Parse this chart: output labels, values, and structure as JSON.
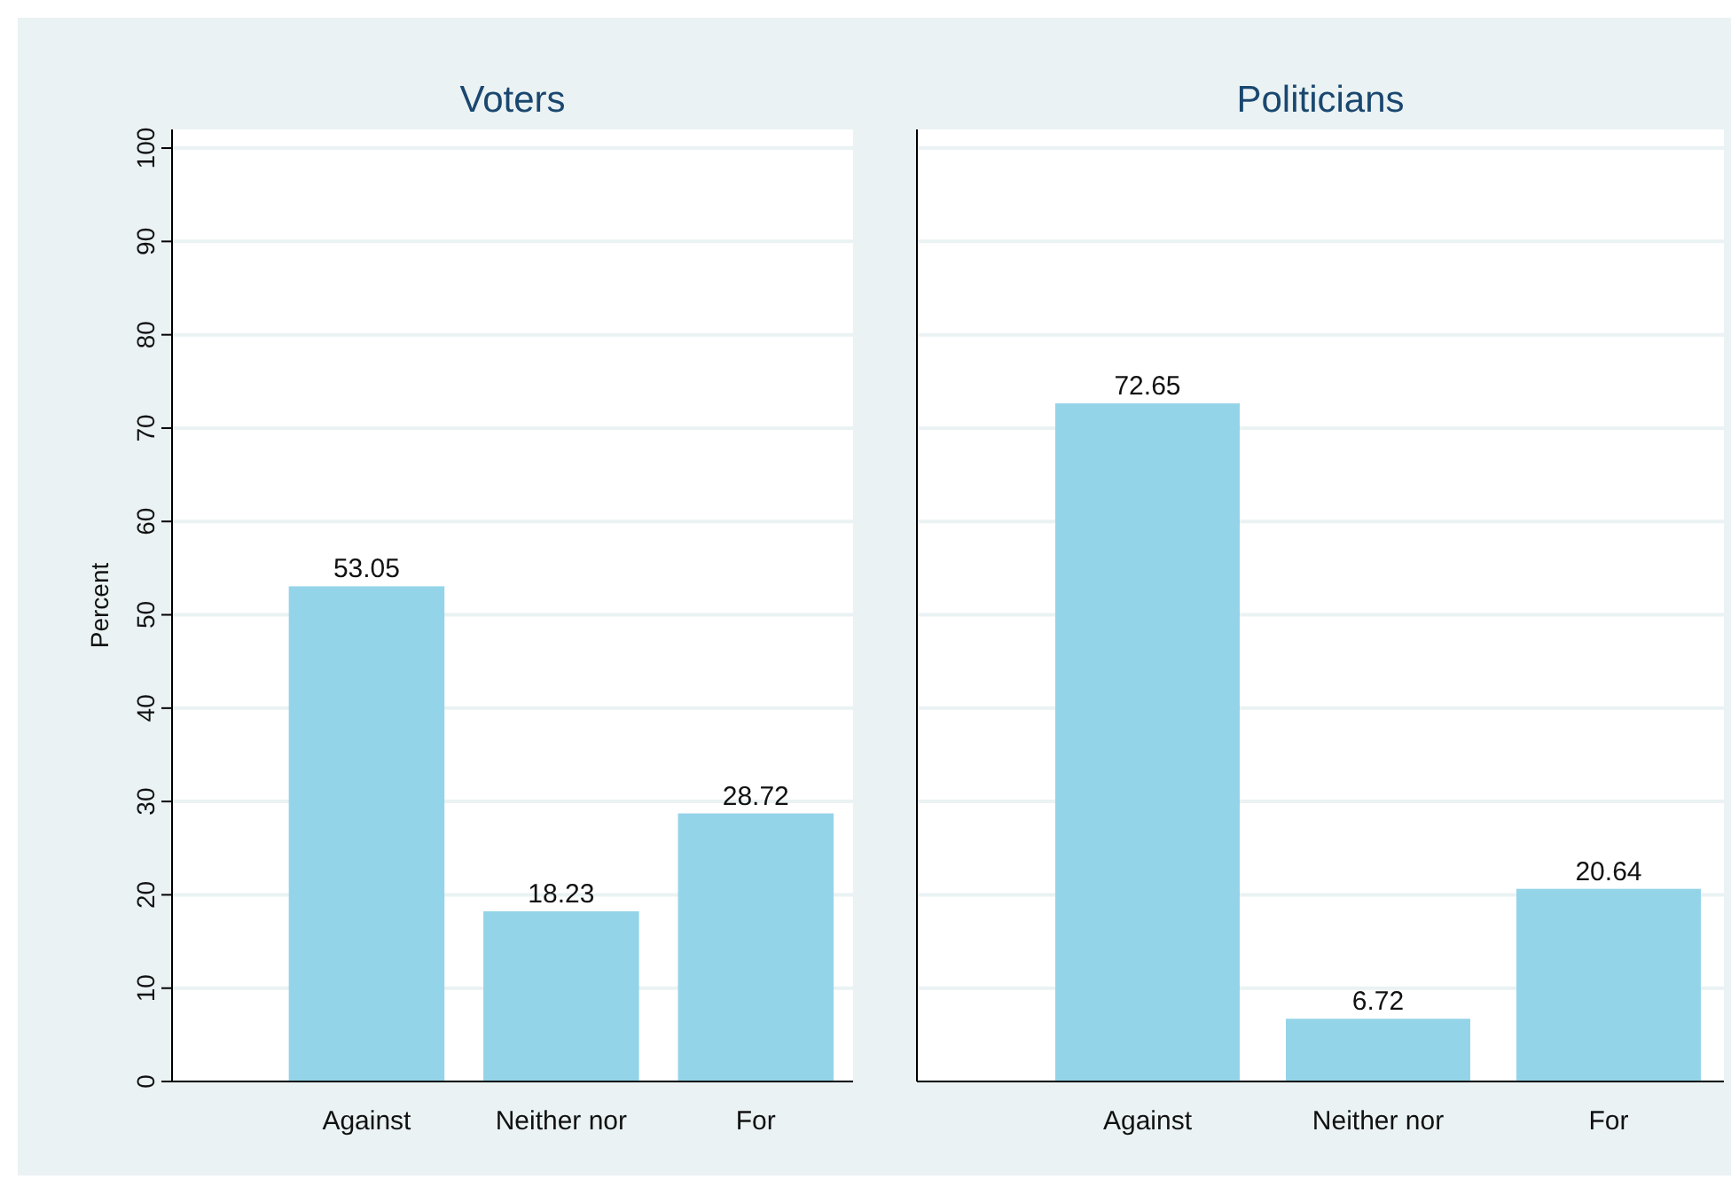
{
  "chart_data": [
    {
      "type": "bar",
      "title": "Voters",
      "ylabel": "Percent",
      "categories": [
        null,
        "Against",
        "Neither nor",
        "For"
      ],
      "values": [
        null,
        53.05,
        18.23,
        28.72
      ],
      "color": "#94d4e9",
      "ylim": [
        0,
        102
      ],
      "yticks": [
        0,
        10,
        20,
        30,
        40,
        50,
        60,
        70,
        80,
        90,
        100
      ],
      "grid": "y",
      "data_labels": true
    },
    {
      "type": "bar",
      "title": "Politicians",
      "categories": [
        null,
        "Against",
        "Neither nor",
        "For"
      ],
      "values": [
        null,
        72.65,
        6.72,
        20.64
      ],
      "color": "#94d4e9",
      "ylim": [
        0,
        102
      ],
      "yticks": [
        0,
        10,
        20,
        30,
        40,
        50,
        60,
        70,
        80,
        90,
        100
      ],
      "grid": "y",
      "data_labels": true,
      "tick_labels": "x"
    }
  ]
}
